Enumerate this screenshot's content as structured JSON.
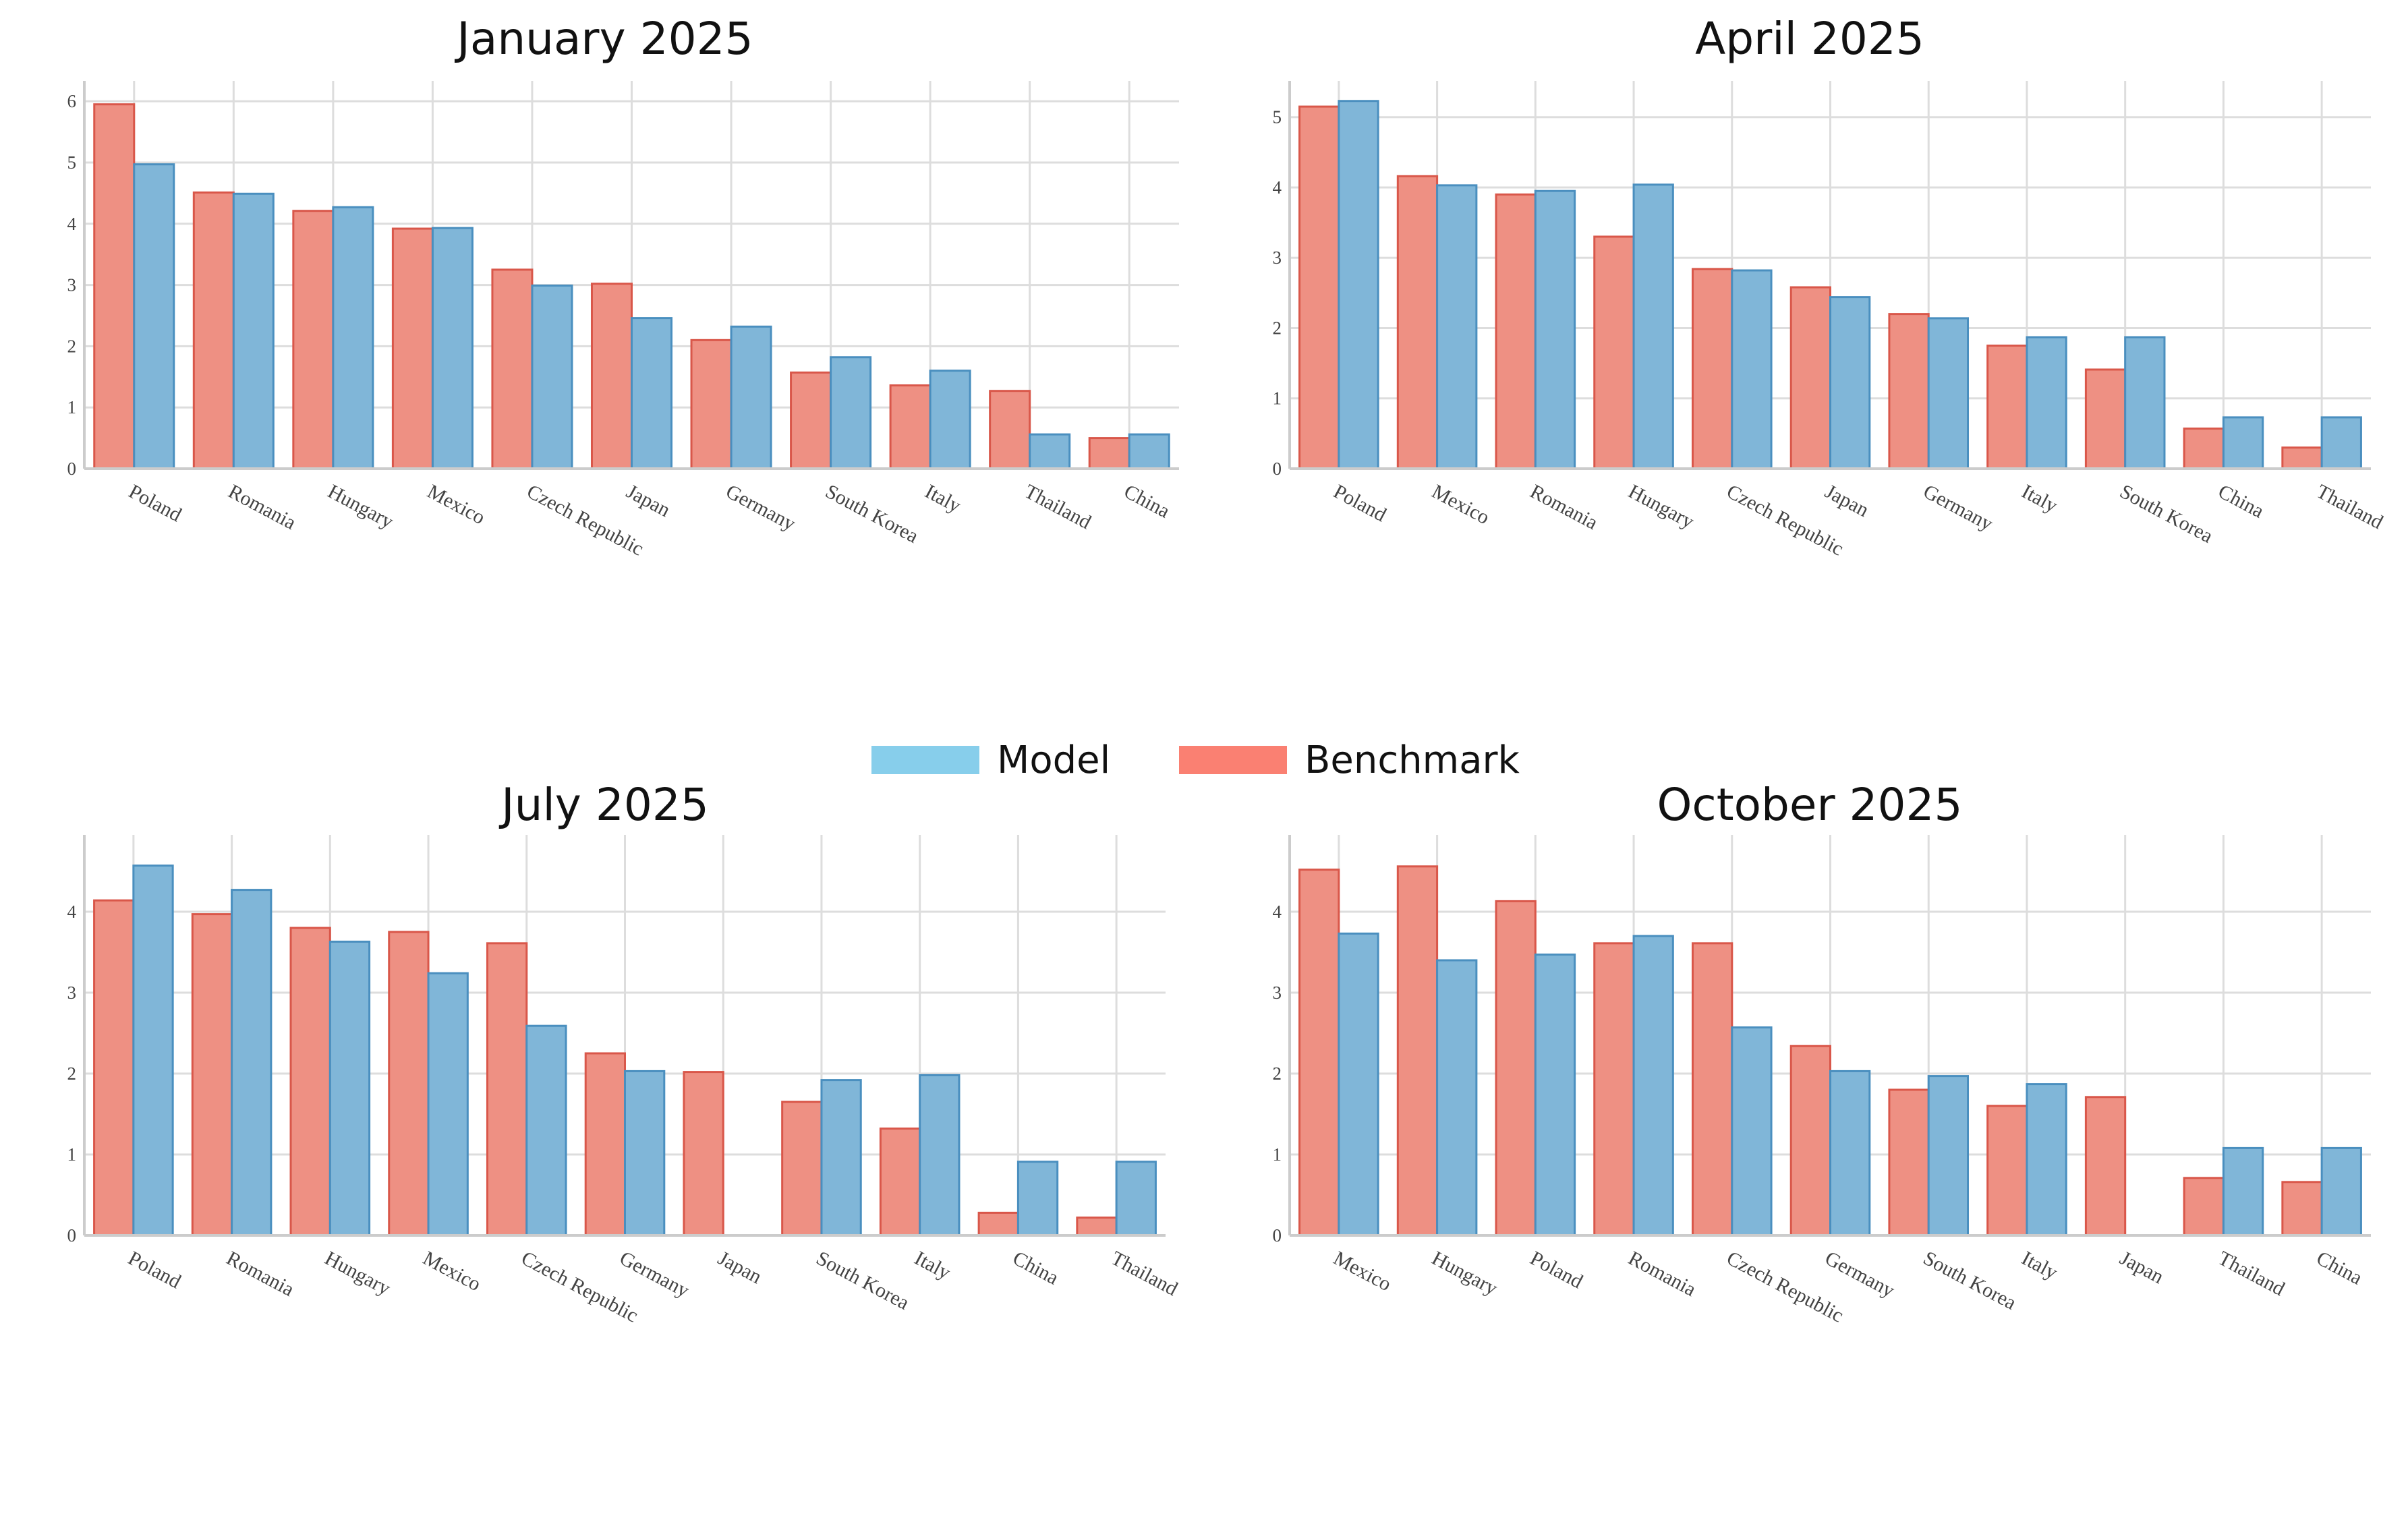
{
  "colors": {
    "model_fill": "#80B6D8",
    "model_edge": "#4A8FBF",
    "benchmark_fill": "#EE9083",
    "benchmark_edge": "#D9574A",
    "legend_model": "#87CEEB",
    "legend_benchmark": "#FA8072",
    "grid": "#DDDDDD",
    "axis": "#CCCCCC"
  },
  "legend": {
    "model_label": "Model",
    "benchmark_label": "Benchmark"
  },
  "chart_data": [
    {
      "type": "bar",
      "title": "January 2025",
      "xlabel": "",
      "ylabel": "",
      "ylim": [
        0,
        6.2
      ],
      "yticks": [
        0,
        1,
        2,
        3,
        4,
        5,
        6
      ],
      "grid": true,
      "categories": [
        "Poland",
        "Romania",
        "Hungary",
        "Mexico",
        "Czech Republic",
        "Japan",
        "Germany",
        "South Korea",
        "Italy",
        "Thailand",
        "China"
      ],
      "series": [
        {
          "name": "Benchmark",
          "values": [
            5.95,
            4.51,
            4.21,
            3.92,
            3.25,
            3.02,
            2.1,
            1.57,
            1.36,
            1.27,
            0.5
          ]
        },
        {
          "name": "Model",
          "values": [
            4.97,
            4.49,
            4.27,
            3.93,
            2.99,
            2.46,
            2.32,
            1.82,
            1.6,
            0.56,
            0.56
          ]
        }
      ]
    },
    {
      "type": "bar",
      "title": "April 2025",
      "xlabel": "",
      "ylabel": "",
      "ylim": [
        0,
        5.4
      ],
      "yticks": [
        0,
        1,
        2,
        3,
        4,
        5
      ],
      "grid": true,
      "categories": [
        "Poland",
        "Mexico",
        "Romania",
        "Hungary",
        "Czech Republic",
        "Japan",
        "Germany",
        "Italy",
        "South Korea",
        "China",
        "Thailand"
      ],
      "series": [
        {
          "name": "Benchmark",
          "values": [
            5.15,
            4.16,
            3.9,
            3.3,
            2.84,
            2.58,
            2.2,
            1.75,
            1.41,
            0.57,
            0.3
          ]
        },
        {
          "name": "Model",
          "values": [
            5.23,
            4.03,
            3.95,
            4.04,
            2.82,
            2.44,
            2.14,
            1.87,
            1.87,
            0.73,
            0.73
          ]
        }
      ]
    },
    {
      "type": "bar",
      "title": "July 2025",
      "xlabel": "",
      "ylabel": "",
      "ylim": [
        0,
        4.85
      ],
      "yticks": [
        0,
        1,
        2,
        3,
        4
      ],
      "grid": true,
      "categories": [
        "Poland",
        "Romania",
        "Hungary",
        "Mexico",
        "Czech Republic",
        "Germany",
        "Japan",
        "South Korea",
        "Italy",
        "China",
        "Thailand"
      ],
      "series": [
        {
          "name": "Benchmark",
          "values": [
            4.14,
            3.97,
            3.8,
            3.75,
            3.61,
            2.25,
            2.02,
            1.65,
            1.32,
            0.28,
            0.22
          ]
        },
        {
          "name": "Model",
          "values": [
            4.57,
            4.27,
            3.63,
            3.24,
            2.59,
            2.03,
            0,
            1.92,
            1.98,
            0.91,
            0.91
          ]
        }
      ]
    },
    {
      "type": "bar",
      "title": "October 2025",
      "xlabel": "",
      "ylabel": "",
      "ylim": [
        0,
        4.85
      ],
      "yticks": [
        0,
        1,
        2,
        3,
        4
      ],
      "grid": true,
      "categories": [
        "Mexico",
        "Hungary",
        "Poland",
        "Romania",
        "Czech Republic",
        "Germany",
        "South Korea",
        "Italy",
        "Japan",
        "Thailand",
        "China"
      ],
      "series": [
        {
          "name": "Benchmark",
          "values": [
            4.52,
            4.56,
            4.13,
            3.61,
            3.61,
            2.34,
            1.8,
            1.6,
            1.71,
            0.71,
            0.66
          ]
        },
        {
          "name": "Model",
          "values": [
            3.73,
            3.4,
            3.47,
            3.7,
            2.57,
            2.03,
            1.97,
            1.87,
            0,
            1.08,
            1.08
          ]
        }
      ]
    }
  ]
}
